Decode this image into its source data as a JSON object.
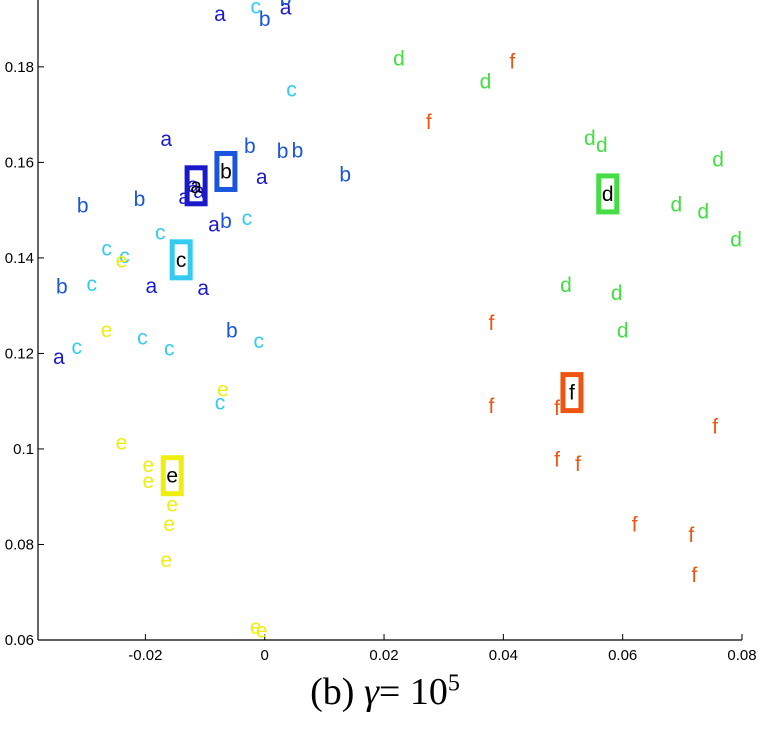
{
  "chart_data": {
    "type": "scatter",
    "title": "",
    "xlabel": "",
    "ylabel": "",
    "xlim": [
      -0.038,
      0.08
    ],
    "ylim": [
      0.06,
      0.194
    ],
    "xticks": [
      "-0.02",
      "0",
      "0.02",
      "0.04",
      "0.06",
      "0.08"
    ],
    "xtick_values": [
      -0.02,
      0,
      0.02,
      0.04,
      0.06,
      0.08
    ],
    "yticks": [
      "0.06",
      "0.08",
      "0.1",
      "0.12",
      "0.14",
      "0.16",
      "0.18"
    ],
    "ytick_values": [
      0.06,
      0.08,
      0.1,
      0.12,
      0.14,
      0.16,
      0.18
    ],
    "grid": false,
    "series": [
      {
        "name": "a",
        "color": "#1a1acc",
        "points": [
          [
            -0.0075,
            0.1911
          ],
          [
            0.0035,
            0.1924
          ],
          [
            -0.0165,
            0.1649
          ],
          [
            -0.012,
            0.1553
          ],
          [
            -0.0135,
            0.1528
          ],
          [
            -0.011,
            0.154
          ],
          [
            -0.0085,
            0.147
          ],
          [
            -0.0005,
            0.1569
          ],
          [
            -0.019,
            0.1341
          ],
          [
            -0.0103,
            0.1337
          ],
          [
            -0.0345,
            0.1193
          ]
        ],
        "center": [
          -0.0115,
          0.1551
        ]
      },
      {
        "name": "b",
        "color": "#1a55dd",
        "points": [
          [
            0.0035,
            0.1944
          ],
          [
            0.0,
            0.19
          ],
          [
            -0.0025,
            0.1634
          ],
          [
            0.003,
            0.1624
          ],
          [
            0.0055,
            0.1625
          ],
          [
            0.0135,
            0.1575
          ],
          [
            -0.021,
            0.1523
          ],
          [
            -0.0305,
            0.151
          ],
          [
            -0.0065,
            0.1477
          ],
          [
            -0.034,
            0.134
          ],
          [
            -0.0055,
            0.1248
          ]
        ],
        "center": [
          -0.0065,
          0.1581
        ]
      },
      {
        "name": "c",
        "color": "#33ccee",
        "points": [
          [
            -0.0015,
            0.1926
          ],
          [
            0.0045,
            0.1753
          ],
          [
            -0.003,
            0.1484
          ],
          [
            -0.0175,
            0.1453
          ],
          [
            -0.0265,
            0.142
          ],
          [
            -0.0235,
            0.1404
          ],
          [
            -0.029,
            0.1345
          ],
          [
            -0.0205,
            0.1233
          ],
          [
            -0.016,
            0.121
          ],
          [
            -0.0315,
            0.1213
          ],
          [
            -0.001,
            0.1226
          ],
          [
            -0.0075,
            0.1097
          ]
        ],
        "center": [
          -0.014,
          0.1396
        ]
      },
      {
        "name": "d",
        "color": "#44dd44",
        "points": [
          [
            0.0225,
            0.1817
          ],
          [
            0.037,
            0.1769
          ],
          [
            0.0545,
            0.1651
          ],
          [
            0.0565,
            0.1636
          ],
          [
            0.076,
            0.1606
          ],
          [
            0.069,
            0.1512
          ],
          [
            0.0735,
            0.1497
          ],
          [
            0.079,
            0.1439
          ],
          [
            0.0505,
            0.1343
          ],
          [
            0.059,
            0.1327
          ],
          [
            0.06,
            0.1248
          ]
        ],
        "center": [
          0.0575,
          0.1534
        ]
      },
      {
        "name": "e",
        "color": "#eeee11",
        "points": [
          [
            -0.024,
            0.1395
          ],
          [
            -0.0265,
            0.1249
          ],
          [
            -0.007,
            0.1125
          ],
          [
            -0.024,
            0.1013
          ],
          [
            -0.0195,
            0.0966
          ],
          [
            -0.0195,
            0.0933
          ],
          [
            -0.0155,
            0.0884
          ],
          [
            -0.016,
            0.0843
          ],
          [
            -0.0165,
            0.0768
          ],
          [
            -0.0015,
            0.0627
          ],
          [
            -0.0005,
            0.062
          ]
        ],
        "center": [
          -0.0155,
          0.0944
        ]
      },
      {
        "name": "f",
        "color": "#ee5511",
        "points": [
          [
            0.0415,
            0.1811
          ],
          [
            0.0275,
            0.1685
          ],
          [
            0.038,
            0.1264
          ],
          [
            0.049,
            0.1086
          ],
          [
            0.038,
            0.109
          ],
          [
            0.0755,
            0.1047
          ],
          [
            0.049,
            0.0978
          ],
          [
            0.0525,
            0.0968
          ],
          [
            0.062,
            0.0842
          ],
          [
            0.0715,
            0.082
          ],
          [
            0.072,
            0.0736
          ]
        ],
        "center": [
          0.0515,
          0.1118
        ]
      }
    ]
  },
  "caption": {
    "prefix": "(b)",
    "symbol": "γ",
    "equals": "=",
    "base": "10",
    "exponent": "5"
  }
}
